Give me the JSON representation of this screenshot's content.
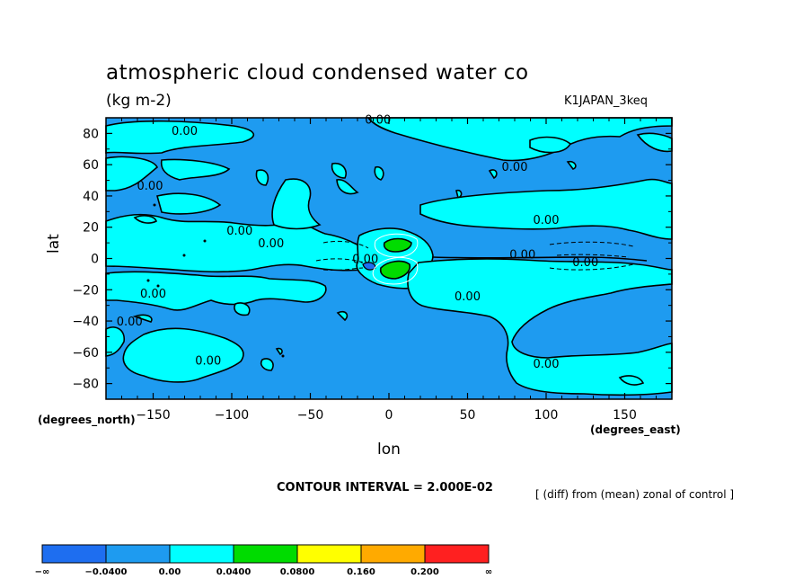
{
  "chart_data": {
    "type": "contour",
    "title": "atmospheric cloud condensed water co",
    "subtitle": "(kg m-2)",
    "run_label": "K1JAPAN_3keq",
    "xlabel": "lon",
    "ylabel": "lat",
    "x_units": "(degrees_east)",
    "y_units": "(degrees_north)",
    "xlim": [
      -180,
      180
    ],
    "ylim": [
      -90,
      90
    ],
    "x_ticks": [
      -150,
      -100,
      -50,
      0,
      50,
      100,
      150
    ],
    "y_ticks": [
      80,
      60,
      40,
      20,
      0,
      -20,
      -40,
      -60,
      -80
    ],
    "contour_interval_text": "CONTOUR INTERVAL = 2.000E-02",
    "note": "[ (diff) from (mean) zonal of control ]",
    "contour_labels": [
      "0.00",
      "0.00",
      "0.00",
      "0.00",
      "0.00",
      "0.00",
      "0.00",
      "0.00",
      "0.00",
      "0.00",
      "0.00",
      "0.00",
      "0.00",
      "0.00",
      "0.00"
    ],
    "colorbar": {
      "labels": [
        "-∞",
        "-0.0400",
        "0.00",
        "0.0400",
        "0.0800",
        "0.160",
        "0.200",
        "∞"
      ],
      "colors": [
        "#1e6ef0",
        "#1e9bf0",
        "#00ffff",
        "#00dc00",
        "#ffff00",
        "#ffaa00",
        "#ff2020"
      ]
    }
  }
}
